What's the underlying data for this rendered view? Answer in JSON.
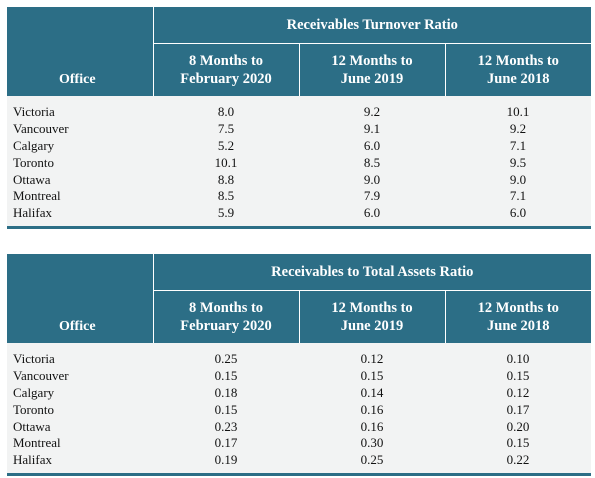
{
  "tables": [
    {
      "title": "Receivables Turnover Ratio",
      "office_header": "Office",
      "columns": [
        {
          "line1": "8 Months to",
          "line2": "February 2020"
        },
        {
          "line1": "12 Months to",
          "line2": "June 2019"
        },
        {
          "line1": "12 Months to",
          "line2": "June 2018"
        }
      ],
      "rows": [
        {
          "office": "Victoria",
          "values": [
            "8.0",
            "9.2",
            "10.1"
          ]
        },
        {
          "office": "Vancouver",
          "values": [
            "7.5",
            "9.1",
            "9.2"
          ]
        },
        {
          "office": "Calgary",
          "values": [
            "5.2",
            "6.0",
            "7.1"
          ]
        },
        {
          "office": "Toronto",
          "values": [
            "10.1",
            "8.5",
            "9.5"
          ]
        },
        {
          "office": "Ottawa",
          "values": [
            "8.8",
            "9.0",
            "9.0"
          ]
        },
        {
          "office": "Montreal",
          "values": [
            "8.5",
            "7.9",
            "7.1"
          ]
        },
        {
          "office": "Halifax",
          "values": [
            "5.9",
            "6.0",
            "6.0"
          ]
        }
      ]
    },
    {
      "title": "Receivables to Total Assets Ratio",
      "office_header": "Office",
      "columns": [
        {
          "line1": "8 Months to",
          "line2": "February 2020"
        },
        {
          "line1": "12 Months to",
          "line2": "June 2019"
        },
        {
          "line1": "12 Months to",
          "line2": "June 2018"
        }
      ],
      "rows": [
        {
          "office": "Victoria",
          "values": [
            "0.25",
            "0.12",
            "0.10"
          ]
        },
        {
          "office": "Vancouver",
          "values": [
            "0.15",
            "0.15",
            "0.15"
          ]
        },
        {
          "office": "Calgary",
          "values": [
            "0.18",
            "0.14",
            "0.12"
          ]
        },
        {
          "office": "Toronto",
          "values": [
            "0.15",
            "0.16",
            "0.17"
          ]
        },
        {
          "office": "Ottawa",
          "values": [
            "0.23",
            "0.16",
            "0.20"
          ]
        },
        {
          "office": "Montreal",
          "values": [
            "0.17",
            "0.30",
            "0.15"
          ]
        },
        {
          "office": "Halifax",
          "values": [
            "0.19",
            "0.25",
            "0.22"
          ]
        }
      ]
    }
  ],
  "colors": {
    "header_bg": "#2c6e86",
    "body_bg": "#f2f3f3"
  }
}
